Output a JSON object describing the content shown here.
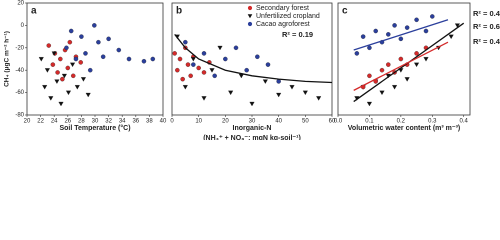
{
  "chart_data": [
    {
      "type": "scatter",
      "title": "a",
      "y_label": "CH₄ (μgC m⁻² h⁻¹)",
      "x_label": [
        "Soil Temperature (°C)"
      ],
      "xlim": [
        20,
        40
      ],
      "xticks": [
        20,
        22,
        24,
        26,
        28,
        30,
        32,
        34,
        36,
        38,
        40
      ],
      "ylim": [
        -80,
        20
      ],
      "yticks": [
        20,
        0,
        -20,
        -40,
        -60,
        -80
      ],
      "series": [
        {
          "color": "#d42a2a",
          "marker": "circle",
          "x": [
            23.2,
            23.8,
            24.1,
            24.5,
            24.9,
            25.2,
            25.6,
            26.0,
            26.3,
            26.8,
            27.2,
            27.9
          ],
          "values": [
            -18,
            -35,
            -25,
            -42,
            -30,
            -48,
            -22,
            -38,
            -15,
            -45,
            -28,
            -33
          ]
        },
        {
          "color": "#111111",
          "marker": "triangle",
          "x": [
            22.1,
            22.6,
            23.0,
            23.5,
            24.0,
            24.4,
            25.0,
            25.5,
            26.1,
            26.7,
            27.4,
            28.3,
            29.0
          ],
          "values": [
            -30,
            -55,
            -40,
            -65,
            -25,
            -50,
            -70,
            -45,
            -60,
            -35,
            -55,
            -48,
            -62
          ]
        },
        {
          "color": "#2b3f9c",
          "marker": "circle",
          "x": [
            25.8,
            26.5,
            27.2,
            28.0,
            28.6,
            29.3,
            29.9,
            30.5,
            31.2,
            32.0,
            33.5,
            35.0,
            37.2,
            38.5
          ],
          "values": [
            -20,
            -5,
            -30,
            -10,
            -25,
            -40,
            0,
            -15,
            -28,
            -12,
            -22,
            -30,
            -32,
            -30
          ]
        }
      ]
    },
    {
      "type": "scatter",
      "title": "b",
      "x_label": [
        "Inorganic-N",
        "(NH₄⁺ + NO₃⁻; mgN kg-soil⁻¹)"
      ],
      "xlim": [
        0,
        60
      ],
      "xticks": [
        0,
        10,
        20,
        30,
        40,
        50,
        60
      ],
      "ylim": [
        -80,
        20
      ],
      "series": [
        {
          "name": "Secondary forest",
          "color": "#d42a2a",
          "marker": "circle",
          "x": [
            1,
            2,
            3,
            4,
            5,
            6,
            7,
            8,
            10,
            12,
            14
          ],
          "values": [
            -25,
            -40,
            -30,
            -48,
            -20,
            -35,
            -45,
            -28,
            -38,
            -42,
            -33
          ]
        },
        {
          "name": "Unfertilized cropland",
          "color": "#111111",
          "marker": "triangle",
          "x": [
            2,
            5,
            8,
            12,
            15,
            18,
            22,
            26,
            30,
            35,
            40,
            45,
            50,
            55
          ],
          "values": [
            -10,
            -55,
            -30,
            -65,
            -40,
            -20,
            -60,
            -45,
            -70,
            -50,
            -62,
            -55,
            -60,
            -65
          ]
        },
        {
          "name": "Cacao agroforest",
          "color": "#2b3f9c",
          "marker": "circle",
          "x": [
            5,
            8,
            12,
            16,
            20,
            24,
            28,
            32,
            36,
            40
          ],
          "values": [
            -15,
            -35,
            -25,
            -45,
            -30,
            -20,
            -40,
            -28,
            -35,
            -50
          ]
        }
      ],
      "fits": [
        {
          "color": "#111111",
          "label": "R² = 0.19",
          "x": [
            1,
            5,
            10,
            20,
            30,
            40,
            50,
            60
          ],
          "values": [
            -8,
            -20,
            -30,
            -40,
            -45,
            -48,
            -50,
            -51
          ]
        }
      ]
    },
    {
      "type": "scatter",
      "title": "c",
      "x_label": [
        "Volumetric water content (m³ m⁻³)"
      ],
      "xlim": [
        0,
        0.42
      ],
      "xticks": [
        {
          "value": 0,
          "label": "0.0"
        },
        0.1,
        0.2,
        0.3,
        0.4
      ],
      "ylim": [
        -80,
        20
      ],
      "series": [
        {
          "color": "#2b3f9c",
          "marker": "circle",
          "x": [
            0.06,
            0.08,
            0.1,
            0.12,
            0.14,
            0.16,
            0.18,
            0.2,
            0.22,
            0.25,
            0.28,
            0.3
          ],
          "values": [
            -25,
            -10,
            -20,
            -5,
            -15,
            -8,
            0,
            -12,
            -2,
            5,
            -5,
            8
          ]
        },
        {
          "color": "#111111",
          "marker": "triangle",
          "x": [
            0.06,
            0.08,
            0.1,
            0.12,
            0.14,
            0.16,
            0.18,
            0.2,
            0.22,
            0.25,
            0.28,
            0.32,
            0.36,
            0.38
          ],
          "values": [
            -65,
            -55,
            -70,
            -50,
            -60,
            -45,
            -55,
            -40,
            -48,
            -35,
            -30,
            -20,
            -10,
            0
          ]
        },
        {
          "color": "#d42a2a",
          "marker": "circle",
          "x": [
            0.08,
            0.1,
            0.12,
            0.14,
            0.16,
            0.18,
            0.2,
            0.22,
            0.25,
            0.28
          ],
          "values": [
            -55,
            -45,
            -50,
            -40,
            -35,
            -42,
            -30,
            -35,
            -25,
            -20
          ]
        }
      ],
      "fits": [
        {
          "color": "#2b3f9c",
          "label": "R² = 0.42",
          "x": [
            0.05,
            0.35
          ],
          "values": [
            -22,
            5
          ]
        },
        {
          "color": "#111111",
          "label": "R² = 0.68",
          "x": [
            0.05,
            0.4
          ],
          "values": [
            -68,
            2
          ]
        },
        {
          "color": "#d42a2a",
          "label": "R² = 0.43",
          "x": [
            0.05,
            0.35
          ],
          "values": [
            -58,
            -15
          ]
        }
      ]
    }
  ]
}
